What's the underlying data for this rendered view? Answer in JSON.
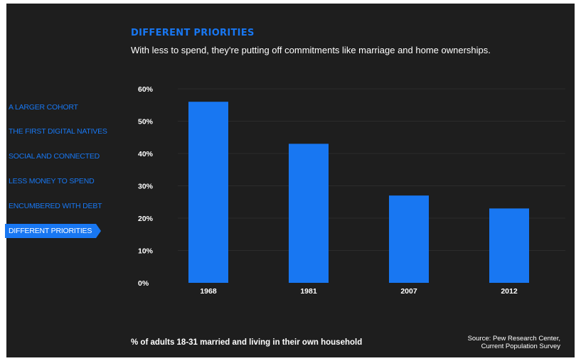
{
  "header": {
    "title": "DIFFERENT PRIORITIES",
    "subtitle": "With less to spend, they're putting off commitments like marriage and home ownerships."
  },
  "nav": {
    "items": [
      {
        "label": "A LARGER COHORT",
        "active": false
      },
      {
        "label": "THE FIRST DIGITAL NATIVES",
        "active": false
      },
      {
        "label": "SOCIAL AND CONNECTED",
        "active": false
      },
      {
        "label": "LESS MONEY TO SPEND",
        "active": false
      },
      {
        "label": "ENCUMBERED WITH DEBT",
        "active": false
      },
      {
        "label": "DIFFERENT PRIORITIES",
        "active": true
      }
    ]
  },
  "footer": {
    "note": "% of adults 18-31 married and living in their own household",
    "source_line1": "Source: Pew Research Center,",
    "source_line2": "Current Population Survey"
  },
  "colors": {
    "background": "#1e1e1e",
    "accent": "#1877f2",
    "text": "#ffffff",
    "grid": "#2c2c2c"
  },
  "chart_data": {
    "type": "bar",
    "categories": [
      "1968",
      "1981",
      "2007",
      "2012"
    ],
    "values": [
      56,
      43,
      27,
      23
    ],
    "title": "",
    "xlabel": "",
    "ylabel": "",
    "ylim": [
      0,
      60
    ],
    "yticks": [
      "0%",
      "10%",
      "20%",
      "30%",
      "40%",
      "50%",
      "60%"
    ],
    "grid": true
  }
}
